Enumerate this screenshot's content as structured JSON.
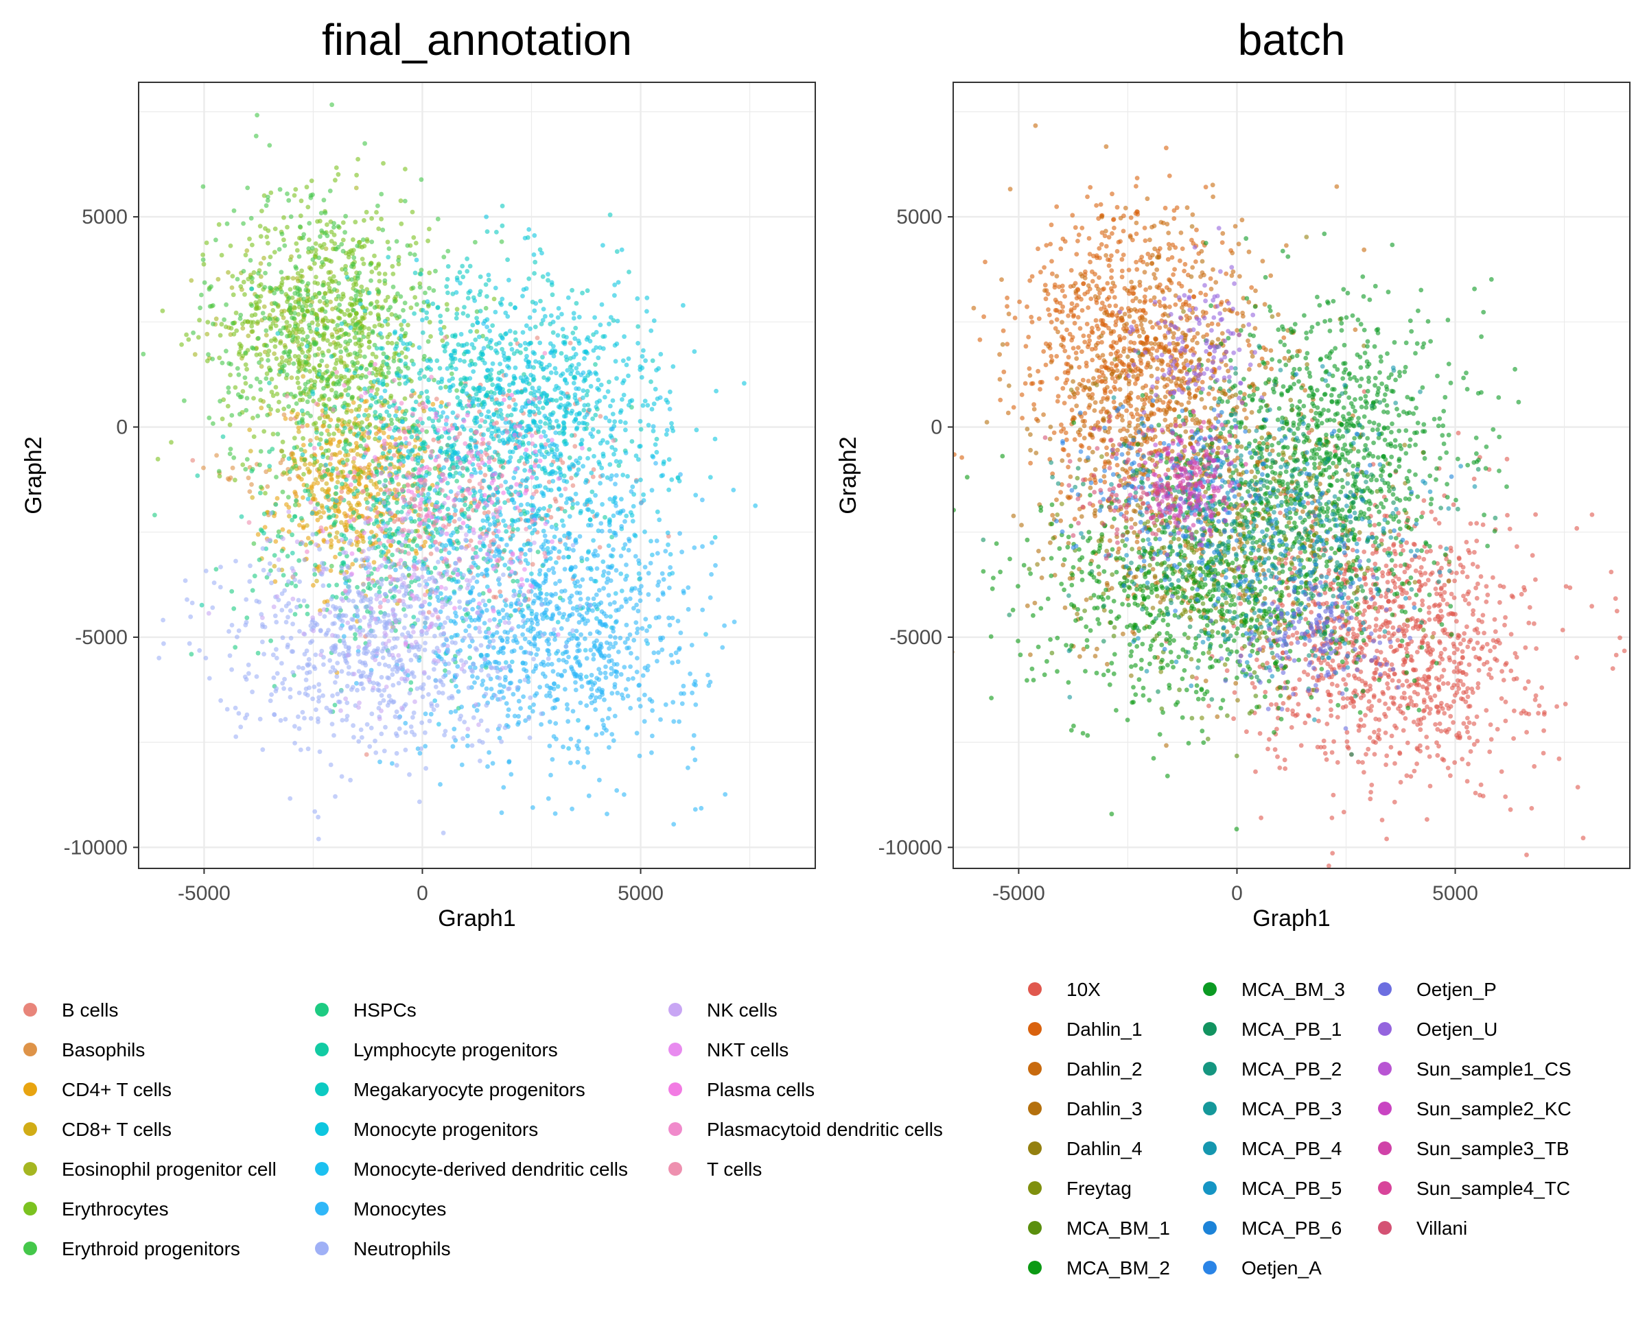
{
  "chart_data": [
    {
      "type": "scatter",
      "title": "final_annotation",
      "xlabel": "Graph1",
      "ylabel": "Graph2",
      "xlim": [
        -6500,
        9000
      ],
      "ylim": [
        -10500,
        8200
      ],
      "xticks": [
        -5000,
        0,
        5000
      ],
      "xtick_labels": [
        "-5000",
        "0",
        "5000"
      ],
      "yticks": [
        5000,
        0,
        -5000,
        -10000
      ],
      "ytick_labels": [
        "5000",
        "0",
        "-5000",
        "-10000"
      ],
      "grid": true,
      "legend_position": "bottom",
      "legend_columns": 3,
      "series": [
        {
          "name": "B cells",
          "color": "#E8857A",
          "center": [
            1200,
            -1500
          ],
          "spread": [
            1600,
            1500
          ],
          "n": 260
        },
        {
          "name": "Basophils",
          "color": "#DE9348",
          "center": [
            -3000,
            -1000
          ],
          "spread": [
            800,
            700
          ],
          "n": 40
        },
        {
          "name": "CD4+ T cells",
          "color": "#E8A410",
          "center": [
            -1500,
            -1600
          ],
          "spread": [
            900,
            1100
          ],
          "n": 340
        },
        {
          "name": "CD8+ T cells",
          "color": "#D1AC16",
          "center": [
            -1800,
            -1200
          ],
          "spread": [
            900,
            1000
          ],
          "n": 160
        },
        {
          "name": "Eosinophil progenitor cell",
          "color": "#A5B621",
          "center": [
            -3000,
            2600
          ],
          "spread": [
            900,
            900
          ],
          "n": 120
        },
        {
          "name": "Erythrocytes",
          "color": "#7BC220",
          "center": [
            -2200,
            2400
          ],
          "spread": [
            1200,
            1500
          ],
          "n": 700
        },
        {
          "name": "Erythroid progenitors",
          "color": "#44C74A",
          "center": [
            -2200,
            2200
          ],
          "spread": [
            1400,
            1900
          ],
          "n": 450
        },
        {
          "name": "HSPCs",
          "color": "#1DCB82",
          "center": [
            -1000,
            -2800
          ],
          "spread": [
            1600,
            1500
          ],
          "n": 300
        },
        {
          "name": "Lymphocyte progenitors",
          "color": "#12CBA3",
          "center": [
            400,
            -1500
          ],
          "spread": [
            1800,
            1600
          ],
          "n": 280
        },
        {
          "name": "Megakaryocyte progenitors",
          "color": "#0CCAC2",
          "center": [
            1200,
            800
          ],
          "spread": [
            1700,
            1500
          ],
          "n": 420
        },
        {
          "name": "Monocyte progenitors",
          "color": "#0DC6DF",
          "center": [
            2800,
            500
          ],
          "spread": [
            1500,
            1500
          ],
          "n": 650
        },
        {
          "name": "Monocyte-derived dendritic cells",
          "color": "#1CC0F0",
          "center": [
            2400,
            -2500
          ],
          "spread": [
            1600,
            1800
          ],
          "n": 420
        },
        {
          "name": "Monocytes",
          "color": "#2FB7F8",
          "center": [
            3200,
            -5000
          ],
          "spread": [
            1600,
            1500
          ],
          "n": 800
        },
        {
          "name": "Neutrophils",
          "color": "#9FB0F6",
          "center": [
            -1200,
            -5200
          ],
          "spread": [
            1700,
            1300
          ],
          "n": 700
        },
        {
          "name": "NK cells",
          "color": "#C8A6F4",
          "center": [
            -500,
            -4200
          ],
          "spread": [
            1500,
            1300
          ],
          "n": 180
        },
        {
          "name": "NKT cells",
          "color": "#E88BEF",
          "center": [
            600,
            -2500
          ],
          "spread": [
            1300,
            1300
          ],
          "n": 90
        },
        {
          "name": "Plasma cells",
          "color": "#F27BE3",
          "center": [
            1500,
            -800
          ],
          "spread": [
            1000,
            1000
          ],
          "n": 60
        },
        {
          "name": "Plasmacytoid dendritic cells",
          "color": "#F08ACB",
          "center": [
            0,
            -800
          ],
          "spread": [
            1200,
            1200
          ],
          "n": 70
        },
        {
          "name": "T cells",
          "color": "#EE90AF",
          "center": [
            500,
            -1800
          ],
          "spread": [
            1500,
            1400
          ],
          "n": 100
        }
      ]
    },
    {
      "type": "scatter",
      "title": "batch",
      "xlabel": "Graph1",
      "ylabel": "Graph2",
      "xlim": [
        -6500,
        9000
      ],
      "ylim": [
        -10500,
        8200
      ],
      "xticks": [
        -5000,
        0,
        5000
      ],
      "xtick_labels": [
        "-5000",
        "0",
        "5000"
      ],
      "yticks": [
        5000,
        0,
        -5000,
        -10000
      ],
      "ytick_labels": [
        "5000",
        "0",
        "-5000",
        "-10000"
      ],
      "grid": true,
      "legend_position": "bottom",
      "legend_columns": 3,
      "series": [
        {
          "name": "10X",
          "color": "#E0584E",
          "center": [
            3600,
            -5200
          ],
          "spread": [
            1600,
            1600
          ],
          "n": 1100
        },
        {
          "name": "Dahlin_1",
          "color": "#D9620E",
          "center": [
            -2600,
            2000
          ],
          "spread": [
            1200,
            1700
          ],
          "n": 700
        },
        {
          "name": "Dahlin_2",
          "color": "#C86A0E",
          "center": [
            -1600,
            800
          ],
          "spread": [
            1400,
            2000
          ],
          "n": 500
        },
        {
          "name": "Dahlin_3",
          "color": "#B4700D",
          "center": [
            -1000,
            -1500
          ],
          "spread": [
            1900,
            2000
          ],
          "n": 350
        },
        {
          "name": "Dahlin_4",
          "color": "#94800F",
          "center": [
            0,
            -2000
          ],
          "spread": [
            2000,
            2000
          ],
          "n": 150
        },
        {
          "name": "Freytag",
          "color": "#7F900E",
          "center": [
            -300,
            -3000
          ],
          "spread": [
            1700,
            1400
          ],
          "n": 90
        },
        {
          "name": "MCA_BM_1",
          "color": "#5A8F0E",
          "center": [
            0,
            -3500
          ],
          "spread": [
            1700,
            1400
          ],
          "n": 200
        },
        {
          "name": "MCA_BM_2",
          "color": "#0C9A14",
          "center": [
            -800,
            -4000
          ],
          "spread": [
            1900,
            1400
          ],
          "n": 700
        },
        {
          "name": "MCA_BM_3",
          "color": "#0B9A23",
          "center": [
            2200,
            -500
          ],
          "spread": [
            1500,
            1700
          ],
          "n": 900
        },
        {
          "name": "MCA_PB_1",
          "color": "#129360",
          "center": [
            500,
            -2800
          ],
          "spread": [
            1800,
            1600
          ],
          "n": 150
        },
        {
          "name": "MCA_PB_2",
          "color": "#159680",
          "center": [
            0,
            -2500
          ],
          "spread": [
            1800,
            1600
          ],
          "n": 120
        },
        {
          "name": "MCA_PB_3",
          "color": "#15989A",
          "center": [
            500,
            -2000
          ],
          "spread": [
            1700,
            1600
          ],
          "n": 120
        },
        {
          "name": "MCA_PB_4",
          "color": "#1597AF",
          "center": [
            1000,
            -2600
          ],
          "spread": [
            1600,
            1500
          ],
          "n": 110
        },
        {
          "name": "MCA_PB_5",
          "color": "#1595C4",
          "center": [
            800,
            -3000
          ],
          "spread": [
            1600,
            1500
          ],
          "n": 110
        },
        {
          "name": "MCA_PB_6",
          "color": "#1C83D8",
          "center": [
            1500,
            -2600
          ],
          "spread": [
            1500,
            1400
          ],
          "n": 100
        },
        {
          "name": "Oetjen_A",
          "color": "#2A84E6",
          "center": [
            -1500,
            -1500
          ],
          "spread": [
            1000,
            1100
          ],
          "n": 180
        },
        {
          "name": "Oetjen_P",
          "color": "#6C6EE0",
          "center": [
            1800,
            -5000
          ],
          "spread": [
            900,
            700
          ],
          "n": 150
        },
        {
          "name": "Oetjen_U",
          "color": "#9464DE",
          "center": [
            -900,
            1800
          ],
          "spread": [
            700,
            900
          ],
          "n": 130
        },
        {
          "name": "Sun_sample1_CS",
          "color": "#B855D3",
          "center": [
            -1200,
            -1500
          ],
          "spread": [
            600,
            700
          ],
          "n": 80
        },
        {
          "name": "Sun_sample2_KC",
          "color": "#C944C2",
          "center": [
            -1100,
            -1000
          ],
          "spread": [
            500,
            600
          ],
          "n": 60
        },
        {
          "name": "Sun_sample3_TB",
          "color": "#D042A8",
          "center": [
            -1400,
            -1800
          ],
          "spread": [
            500,
            600
          ],
          "n": 50
        },
        {
          "name": "Sun_sample4_TC",
          "color": "#D8449A",
          "center": [
            -1000,
            -1400
          ],
          "spread": [
            500,
            600
          ],
          "n": 50
        },
        {
          "name": "Villani",
          "color": "#D45274",
          "center": [
            -2600,
            -1400
          ],
          "spread": [
            700,
            800
          ],
          "n": 90
        }
      ]
    }
  ]
}
